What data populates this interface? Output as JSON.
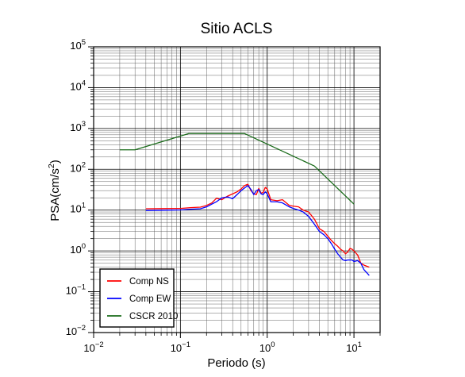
{
  "chart_data": {
    "type": "line",
    "title": "Sitio ACLS",
    "xlabel": "Periodo (s)",
    "ylabel": "PSA(cm/s²)",
    "xscale": "log",
    "yscale": "log",
    "xlim": [
      0.01,
      20
    ],
    "ylim": [
      0.01,
      100000
    ],
    "grid": true,
    "legend_position": "bottom-left",
    "x_tick_labels": [
      {
        "value": 0.01,
        "base": "10",
        "exp": "−2"
      },
      {
        "value": 0.1,
        "base": "10",
        "exp": "−1"
      },
      {
        "value": 1,
        "base": "10",
        "exp": "0"
      },
      {
        "value": 10,
        "base": "10",
        "exp": "1"
      }
    ],
    "y_tick_labels": [
      {
        "value": 0.01,
        "base": "10",
        "exp": "−2"
      },
      {
        "value": 0.1,
        "base": "10",
        "exp": "−1"
      },
      {
        "value": 1,
        "base": "10",
        "exp": "0"
      },
      {
        "value": 10,
        "base": "10",
        "exp": "1"
      },
      {
        "value": 100,
        "base": "10",
        "exp": "2"
      },
      {
        "value": 1000,
        "base": "10",
        "exp": "3"
      },
      {
        "value": 10000,
        "base": "10",
        "exp": "4"
      },
      {
        "value": 100000,
        "base": "10",
        "exp": "5"
      }
    ],
    "series": [
      {
        "name": "Comp NS",
        "color": "#ff0000",
        "x": [
          0.04,
          0.06,
          0.08,
          0.1,
          0.13,
          0.17,
          0.2,
          0.23,
          0.26,
          0.3,
          0.35,
          0.4,
          0.45,
          0.5,
          0.55,
          0.6,
          0.65,
          0.7,
          0.75,
          0.8,
          0.85,
          0.9,
          0.95,
          1.0,
          1.1,
          1.3,
          1.5,
          1.8,
          2.0,
          2.3,
          2.6,
          3.0,
          3.5,
          4.0,
          4.5,
          5.0,
          5.5,
          6.0,
          6.5,
          7.0,
          7.5,
          8.0,
          8.5,
          9.0,
          9.5,
          10.0,
          11.0,
          12.0,
          13.0,
          15.0
        ],
        "y": [
          10.8,
          10.9,
          11.0,
          11.0,
          11.5,
          11.8,
          13.0,
          15.0,
          19.5,
          18.0,
          22.0,
          25.0,
          28.0,
          33.0,
          40.0,
          43.0,
          30.0,
          25.0,
          24.0,
          34.0,
          26.0,
          27.0,
          36.0,
          33.0,
          18.0,
          17.0,
          18.0,
          13.0,
          12.5,
          12.0,
          10.0,
          9.0,
          6.0,
          3.5,
          3.0,
          2.3,
          1.8,
          1.5,
          1.3,
          1.1,
          1.0,
          0.85,
          0.95,
          1.15,
          1.1,
          1.0,
          0.8,
          0.5,
          0.45,
          0.4
        ]
      },
      {
        "name": "Comp EW",
        "color": "#0000ff",
        "x": [
          0.04,
          0.06,
          0.08,
          0.1,
          0.13,
          0.17,
          0.2,
          0.23,
          0.26,
          0.3,
          0.35,
          0.4,
          0.45,
          0.5,
          0.55,
          0.6,
          0.65,
          0.7,
          0.75,
          0.8,
          0.85,
          0.9,
          0.95,
          1.0,
          1.1,
          1.3,
          1.5,
          1.8,
          2.0,
          2.3,
          2.6,
          3.0,
          3.5,
          4.0,
          4.5,
          5.0,
          5.5,
          6.0,
          6.5,
          7.0,
          7.5,
          8.0,
          8.5,
          9.0,
          9.5,
          10.0,
          11.0,
          12.0,
          13.0,
          15.0
        ],
        "y": [
          9.8,
          9.9,
          10.0,
          10.1,
          10.5,
          10.8,
          12.0,
          14.0,
          16.0,
          20.0,
          21.0,
          19.0,
          24.0,
          30.0,
          35.0,
          40.0,
          32.0,
          24.0,
          30.0,
          32.0,
          25.0,
          24.0,
          28.0,
          25.0,
          16.0,
          16.0,
          15.0,
          12.0,
          11.0,
          10.0,
          9.0,
          7.0,
          4.5,
          3.0,
          2.5,
          2.0,
          1.5,
          1.1,
          0.85,
          0.7,
          0.6,
          0.58,
          0.6,
          0.6,
          0.6,
          0.55,
          0.58,
          0.5,
          0.35,
          0.25
        ]
      },
      {
        "name": "CSCR 2010",
        "color": "#1a6b1a",
        "x": [
          0.02,
          0.03,
          0.125,
          0.55,
          3.5,
          10.0
        ],
        "y": [
          300,
          300,
          750,
          750,
          120,
          14
        ]
      }
    ]
  }
}
